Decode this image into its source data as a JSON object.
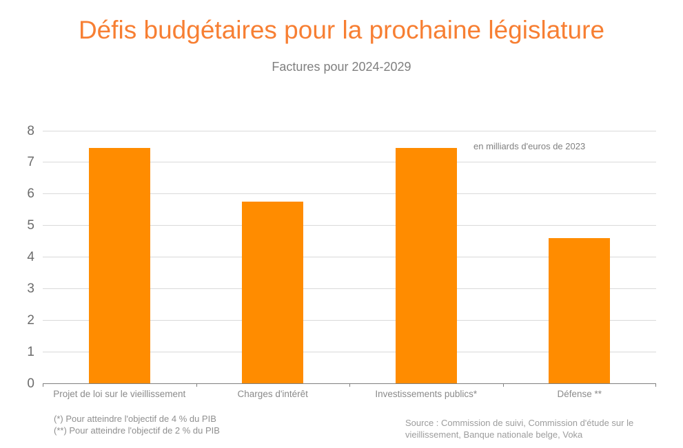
{
  "chart_data": {
    "type": "bar",
    "title": "Défis budgétaires pour la prochaine législature",
    "subtitle": "Factures pour 2024-2029",
    "annotation": "en milliards d'euros de 2023",
    "categories": [
      "Projet de loi sur le vieillissement",
      "Charges d'intérêt",
      "Investissements publics*",
      "Défense **"
    ],
    "values": [
      7.45,
      5.75,
      7.45,
      4.6
    ],
    "xlabel": "",
    "ylabel": "",
    "ylim": [
      0,
      8
    ],
    "ytick_step": 1,
    "grid": true,
    "legend": false,
    "bar_color": "#FF8C00",
    "bar_width_ratio": 0.4
  },
  "footnotes": [
    "(*) Pour atteindre l'objectif de 4 % du PIB",
    "(**) Pour atteindre l'objectif de 2 % du PIB"
  ],
  "source": {
    "text": "Source : Commission de suivi, Commission d'étude sur le vieillissement, Banque nationale belge, Voka"
  },
  "colors": {
    "title": "#F77F33",
    "bar": "#FF8C00",
    "subtitle": "#7F7F7F",
    "y_axis_text": "#6B6B6B",
    "x_axis_text": "#8A8A8A",
    "gridline": "#D9D9D9",
    "axis_line": "#7F7F7F",
    "annotation_text": "#808080",
    "footnote_text": "#8F8F8F",
    "source_text": "#9C9C9C"
  }
}
